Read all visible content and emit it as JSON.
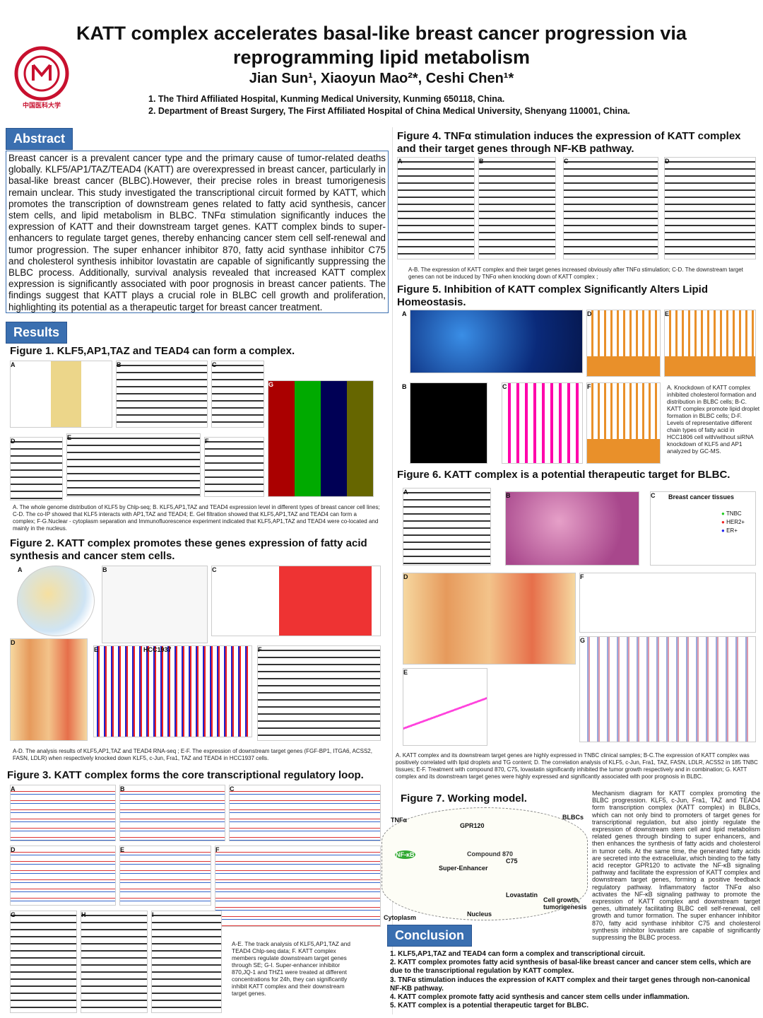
{
  "header": {
    "title": "KATT complex accelerates basal-like breast cancer progression via reprogramming lipid metabolism",
    "authors": "Jian Sun¹, Xiaoyun Mao²*, Ceshi Chen¹*",
    "affiliations": [
      "1. The Third Affiliated Hospital, Kunming Medical University, Kunming 650118, China.",
      "2. Department of Breast Surgery, The First Affiliated Hospital of China Medical University, Shenyang 110001, China."
    ],
    "logo_text": "中国医科大学 CHINA MEDICAL UNIVERSITY"
  },
  "abstract": {
    "label": "Abstract",
    "text": "Breast cancer is a prevalent cancer type and the primary cause of tumor-related deaths globally. KLF5/AP1/TAZ/TEAD4 (KATT) are overexpressed in breast cancer, particularly in basal-like breast cancer (BLBC).However, their precise roles in breast tumorigenesis remain unclear. This study investigated the transcriptional circuit formed by KATT, which promotes the transcription of downstream genes related to fatty acid synthesis, cancer stem cells, and lipid metabolism in BLBC. TNFα stimulation significantly induces the expression of KATT and their downstream target genes. KATT complex binds to super-enhancers to regulate target genes, thereby enhancing cancer stem cell self-renewal and tumor progression. The super enhancer inhibitor 870, fatty acid synthase inhibitor C75 and cholesterol synthesis inhibitor lovastatin are capable of significantly suppressing the BLBC process. Additionally, survival analysis revealed that increased KATT complex expression is significantly associated with poor prognosis in breast cancer patients. The findings suggest that KATT plays a crucial role in BLBC cell growth and proliferation, highlighting its potential as a therapeutic target for breast cancer treatment."
  },
  "results_label": "Results",
  "figures": {
    "fig1": {
      "title": "Figure 1. KLF5,AP1,TAZ and TEAD4 can form a complex.",
      "caption": "A. The whole genome distribution of KLF5 by Chlp-seq; B. KLF5,AP1,TAZ and TEAD4 expression level in different types of breast cancer cell lines; C-D. The co-IP showed that KLF5 interacts with AP1,TAZ and TEAD4; E. Gel filtration showed that KLF5,AP1,TAZ and TEAD4 can form a complex; F-G.Nuclear - cytoplasm separation and Immunofluorescence experiment indicated that KLF5,AP1,TAZ and TEAD4 were co-located and mainly in the nucleus.",
      "panels": [
        "A",
        "B",
        "C",
        "D",
        "E",
        "F",
        "G"
      ]
    },
    "fig2": {
      "title": "Figure 2. KATT complex promotes these genes expression of fatty acid synthesis and cancer stem cells.",
      "caption": "A-D. The analysis results of KLF5,AP1,TAZ and TEAD4 RNA-seq ; E-F. The expression of downstream target genes (FGF-BP1, ITGA6, ACSS2, FASN, LDLR) when respectively knocked down KLF5, c-Jun, Fra1, TAZ and TEAD4 in HCC1937 cells.",
      "panels": [
        "A",
        "B",
        "C",
        "D",
        "E",
        "F"
      ],
      "chart_label": "HCC1937"
    },
    "fig3": {
      "title": "Figure 3. KATT complex forms the core transcriptional regulatory loop.",
      "caption": "A-E. The track analysis of KLF5,AP1,TAZ and TEAD4 Chlp-seq data; F. KATT complex members regulate downstream target genes through SE; G-I. Super-enhancer inhibitor 870,JQ-1 and THZ1 were treated at different concentrations for 24h, they can significantly inhibit KATT complex and their downstream target genes.",
      "panels": [
        "A",
        "B",
        "C",
        "D",
        "E",
        "F",
        "G",
        "H",
        "I"
      ]
    },
    "fig4": {
      "title": "Figure 4. TNFα stimulation induces the expression of KATT complex and their target genes through NF-KB pathway.",
      "caption": "A-B. The expression of KATT complex and their target genes increased obviously after TNFα stimulation; C-D. The downstream target genes can not be induced by TNFα when knocking down of KATT complex ;",
      "panels": [
        "A",
        "B",
        "C",
        "D"
      ]
    },
    "fig5": {
      "title": "Figure 5.  Inhibition of KATT complex Significantly Alters Lipid Homeostasis.",
      "caption": "A. Knockdown of KATT complex inhibited cholesterol formation and distribution in BLBC cells; B-C. KATT complex promote lipid droplet formation in BLBC cells; D-F.  Levels of representative different chain types of fatty acid in HCC1806 cell with/without siRNA knockdown of KLF5 and AP1 analyzed by GC-MS.",
      "panels": [
        "A",
        "B",
        "C",
        "D",
        "E",
        "F"
      ]
    },
    "fig6": {
      "title": "Figure 6. KATT complex is a potential therapeutic target for BLBC.",
      "caption": "A. KATT complex and its downstream target genes are highly expressed in TNBC clinical samples; B-C.The expression of KATT complex was positively correlated with lipid droplets and TG content;  D. The correlation analysis of KLF5, c-Jun, Fra1, TAZ, FASN, LDLR, ACSS2 in 185 TNBC tissues; E-F. Treatment with compound 870, C75, lovastatin significantly inhibited the tumor growth respectively and in combination; G. KATT complex and its downstream target genes were highly expressed and significantly associated with poor prognosis in BLBC.",
      "panels": [
        "A",
        "B",
        "C",
        "D",
        "E",
        "F",
        "G"
      ],
      "tissue_label": "Breast cancer tissues",
      "legend": [
        "TNBC",
        "HER2+",
        "ER+"
      ]
    },
    "fig7": {
      "title": "Figure 7. Working model.",
      "description": "Mechanism diagram for KATT complex promoting the BLBC progression. KLF5, c-Jun, Fra1, TAZ and TEAD4 form transcription complex (KATT complex) in BLBCs, which can not only bind to promoters of target genes for transcriptional regulation, but also jointly regulate the expression of downstream stem cell and lipid metabolism related genes through binding to super enhancers, and then enhances the synthesis of fatty acids and cholesterol in tumor cells. At the same time, the generated fatty acids are secreted into the extracellular, which binding to the fatty acid receptor GPR120 to activate the NF-κB signaling pathway and facilitate the expression of KATT complex and downstream target genes, forming a positive feedback regulatory pathway. Inflammatory factor TNFα also activates the NF-κB signaling pathway to promote the expression of KATT complex and downstream target genes, ultimately facilitating BLBC cell self-renewal, cell growth and tumor formation. The super enhancer inhibitor 870, fatty acid synthase inhibitor C75 and cholesterol synthesis inhibitor lovastatin are capable of significantly suppressing the BLBC process.",
      "diagram_labels": [
        "TNFα",
        "GPR120",
        "NF-κB",
        "Super-Enhancer",
        "Compound 870",
        "C75",
        "Lovastatin",
        "Cell growth, tumorigenesis",
        "BLBCs",
        "Nucleus",
        "Cytoplasm"
      ]
    }
  },
  "conclusion": {
    "label": "Conclusion",
    "items": [
      "1. KLF5,AP1,TAZ and TEAD4 can form a complex and transcriptional circuit.",
      "2. KATT complex promotes fatty acid synthesis of basal-like breast cancer and cancer stem cells, which are due to the transcriptional regulation by KATT complex.",
      "3. TNFα stimulation induces the expression of KATT complex and their target genes through non-canonical NF-KB pathway.",
      "4. KATT complex promote fatty acid synthesis and cancer stem cells under inflammation.",
      "5. KATT complex is a potential therapeutic target for BLBC."
    ]
  }
}
